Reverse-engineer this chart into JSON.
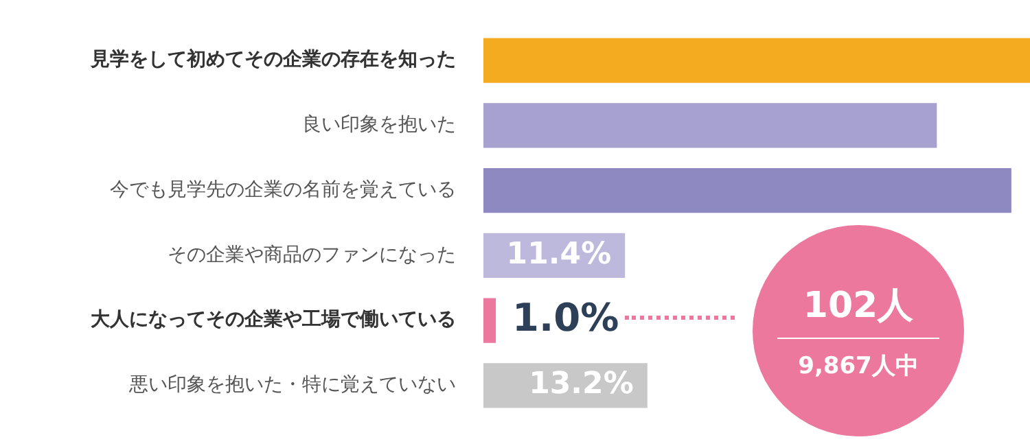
{
  "chart_data": {
    "type": "bar",
    "orientation": "horizontal",
    "categories": [
      "見学をして初めてその企業の存在を知った",
      "良い印象を抱いた",
      "今でも見学先の企業の名前を覚えている",
      "その企業や商品のファンになった",
      "大人になってその企業や工場で働いている",
      "悪い印象を抱いた・特に覚えていない"
    ],
    "values": [
      44,
      36.5,
      42.5,
      11.4,
      1.0,
      13.2
    ],
    "colors": [
      "#f5ab1f",
      "#a7a1cf",
      "#8e8ac1",
      "#bdb9dc",
      "#ec799d",
      "#c8c8c8"
    ],
    "value_labels": [
      null,
      null,
      null,
      "11.4%",
      "1.0%",
      "13.2%"
    ],
    "xlim": [
      0,
      44
    ],
    "tick_labels": "y",
    "legend": false,
    "annotations": [
      "102人",
      "9,867人中"
    ]
  }
}
